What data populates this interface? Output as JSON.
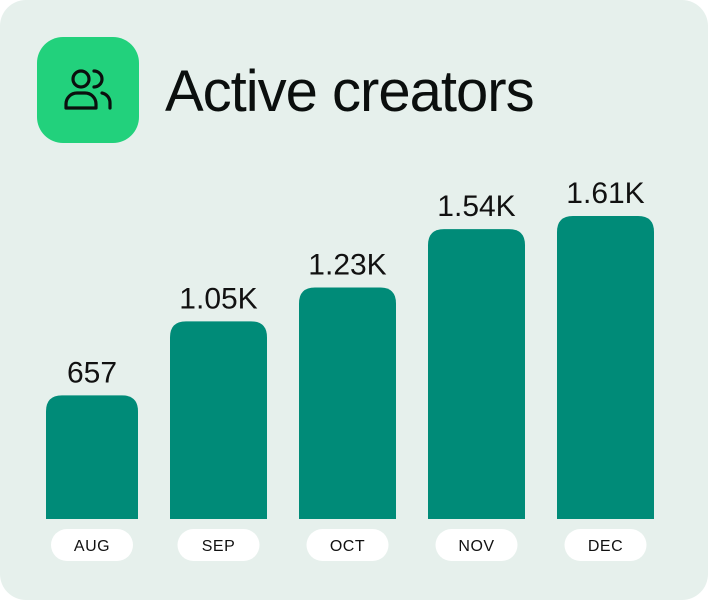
{
  "header": {
    "title": "Active creators",
    "icon": "users-icon"
  },
  "colors": {
    "card_background": "#e6f0ec",
    "icon_background": "#22d17c",
    "bar": "#008b78",
    "pill": "#ffffff"
  },
  "chart_data": {
    "type": "bar",
    "title": "Active creators",
    "categories": [
      "AUG",
      "SEP",
      "OCT",
      "NOV",
      "DEC"
    ],
    "values": [
      657,
      1050,
      1230,
      1540,
      1610
    ],
    "value_labels": [
      "657",
      "1.05K",
      "1.23K",
      "1.54K",
      "1.61K"
    ],
    "grid": false,
    "legend": "none"
  }
}
